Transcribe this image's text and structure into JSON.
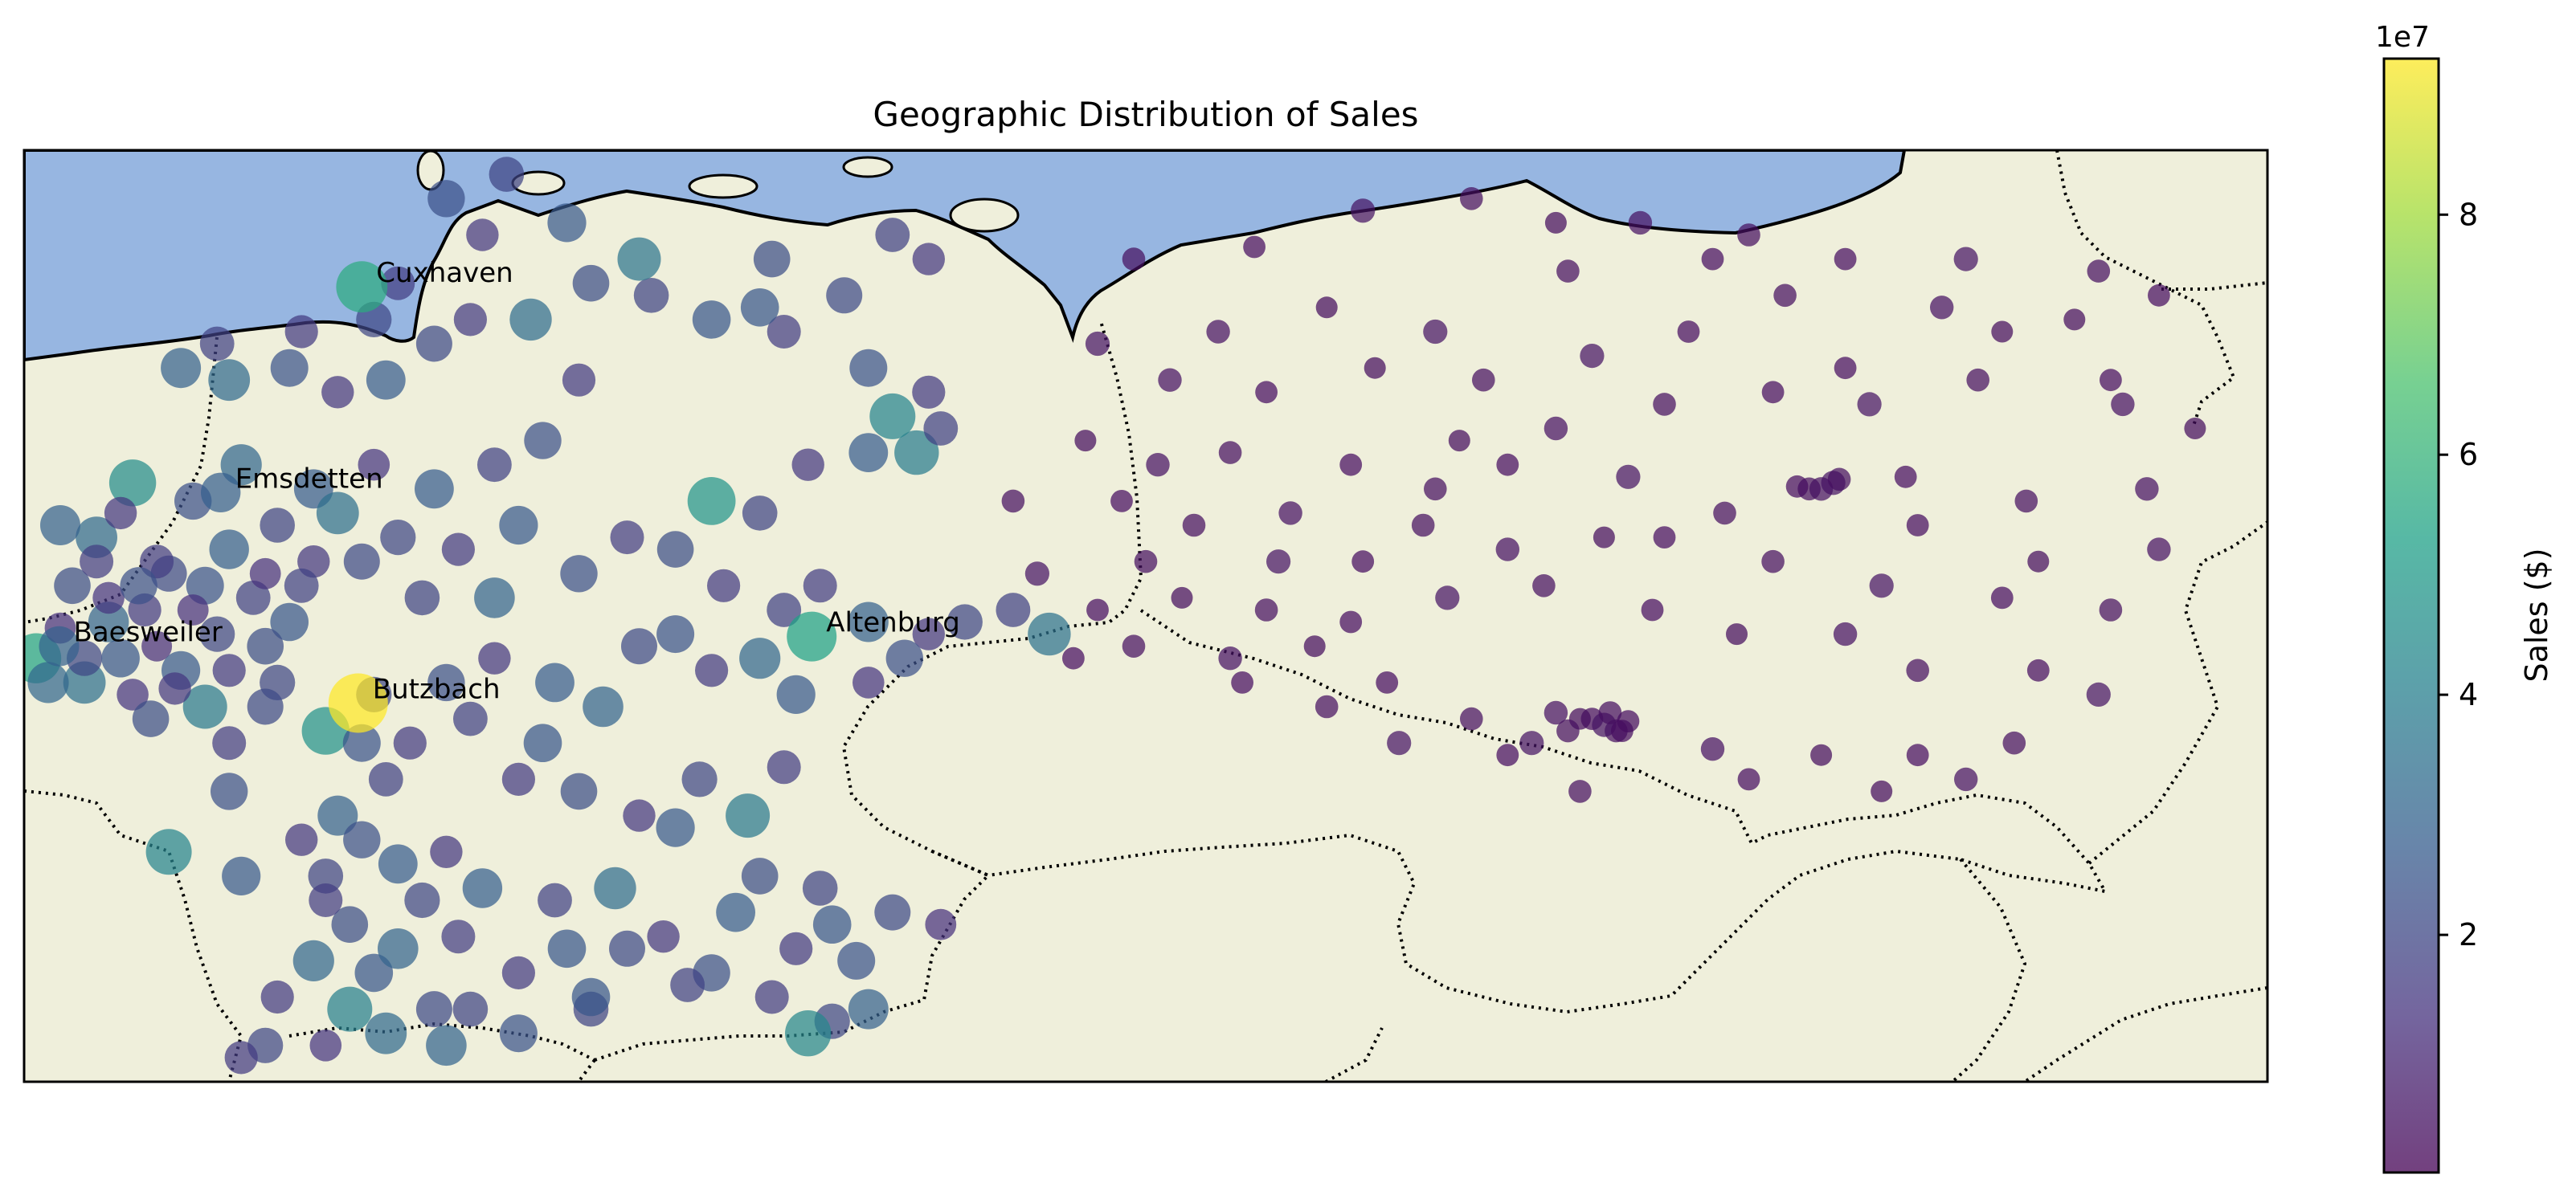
{
  "chart_data": {
    "type": "scatter",
    "title": "Geographic Distribution of Sales",
    "colorbar": {
      "label": "Sales ($)",
      "offset_label": "1e7",
      "ticks": [
        2,
        4,
        6,
        8
      ],
      "tick_labels": [
        "2",
        "4",
        "6",
        "8"
      ],
      "range": [
        0.02,
        9.3
      ],
      "colormap": "viridis"
    },
    "map_extent": {
      "lon": [
        5.9,
        24.5
      ],
      "lat": [
        47.3,
        55.0
      ]
    },
    "colors": {
      "ocean": "#97b6e1",
      "land": "#efefdb",
      "coast": "#000000",
      "border": "#000000"
    },
    "labeled_cities": [
      {
        "name": "Cuxhaven",
        "lon": 8.7,
        "lat": 53.87,
        "sales": 5.7
      },
      {
        "name": "Emsdetten",
        "lon": 7.53,
        "lat": 52.17,
        "sales": 2.8
      },
      {
        "name": "Baesweiler",
        "lon": 6.19,
        "lat": 50.9,
        "sales": 2.9
      },
      {
        "name": "Butzbach",
        "lon": 8.67,
        "lat": 50.43,
        "sales": 9.3
      },
      {
        "name": "Altenburg",
        "lon": 12.43,
        "lat": 50.98,
        "sales": 5.3
      }
    ],
    "points": [
      [
        6.8,
        52.25,
        4.5
      ],
      [
        6.5,
        51.8,
        3.2
      ],
      [
        7.1,
        51.5,
        2.1
      ],
      [
        6.9,
        51.2,
        1.6
      ],
      [
        7.4,
        51.4,
        2.4
      ],
      [
        6.6,
        51.1,
        3.0
      ],
      [
        7.0,
        50.9,
        1.2
      ],
      [
        7.6,
        51.7,
        2.8
      ],
      [
        6.3,
        51.4,
        2.2
      ],
      [
        6.0,
        50.8,
        5.4
      ],
      [
        6.4,
        50.6,
        3.4
      ],
      [
        7.2,
        50.7,
        2.6
      ],
      [
        6.8,
        50.5,
        1.4
      ],
      [
        7.5,
        51.0,
        2.0
      ],
      [
        7.8,
        51.3,
        1.8
      ],
      [
        6.2,
        51.9,
        2.9
      ],
      [
        6.7,
        52.0,
        1.5
      ],
      [
        7.3,
        52.1,
        2.3
      ],
      [
        7.7,
        52.4,
        3.1
      ],
      [
        8.0,
        51.9,
        1.9
      ],
      [
        8.3,
        52.2,
        2.7
      ],
      [
        7.9,
        51.5,
        1.3
      ],
      [
        8.1,
        51.1,
        2.5
      ],
      [
        7.4,
        50.4,
        3.8
      ],
      [
        6.95,
        50.3,
        2.2
      ],
      [
        7.6,
        50.1,
        1.7
      ],
      [
        8.0,
        50.6,
        2.0
      ],
      [
        8.4,
        50.2,
        4.7
      ],
      [
        8.7,
        50.1,
        2.4
      ],
      [
        8.9,
        49.8,
        1.8
      ],
      [
        8.5,
        49.5,
        2.9
      ],
      [
        8.2,
        49.3,
        1.5
      ],
      [
        7.6,
        49.7,
        2.3
      ],
      [
        7.1,
        49.2,
        4.2
      ],
      [
        7.7,
        49.0,
        2.6
      ],
      [
        8.4,
        49.0,
        1.9
      ],
      [
        8.6,
        48.6,
        2.2
      ],
      [
        8.3,
        48.3,
        3.1
      ],
      [
        8.0,
        48.0,
        1.6
      ],
      [
        8.8,
        48.2,
        2.5
      ],
      [
        9.2,
        48.8,
        2.0
      ],
      [
        9.0,
        48.4,
        3.0
      ],
      [
        9.5,
        48.5,
        1.7
      ],
      [
        9.7,
        48.9,
        2.8
      ],
      [
        9.3,
        47.9,
        2.1
      ],
      [
        8.9,
        47.7,
        3.2
      ],
      [
        8.4,
        47.6,
        1.4
      ],
      [
        7.9,
        47.6,
        2.0
      ],
      [
        7.7,
        47.5,
        1.6
      ],
      [
        9.4,
        47.6,
        3.0
      ],
      [
        10.0,
        47.7,
        2.4
      ],
      [
        10.6,
        47.9,
        1.9
      ],
      [
        10.0,
        48.2,
        1.6
      ],
      [
        10.4,
        48.4,
        2.5
      ],
      [
        10.9,
        48.4,
        2.1
      ],
      [
        10.3,
        48.8,
        1.8
      ],
      [
        10.8,
        48.9,
        3.3
      ],
      [
        11.2,
        48.5,
        1.5
      ],
      [
        11.6,
        48.2,
        2.3
      ],
      [
        12.1,
        48.0,
        1.7
      ],
      [
        12.6,
        47.8,
        2.0
      ],
      [
        12.9,
        47.9,
        2.9
      ],
      [
        12.3,
        48.4,
        1.6
      ],
      [
        11.8,
        48.7,
        2.7
      ],
      [
        12.0,
        49.0,
        2.2
      ],
      [
        12.5,
        48.9,
        1.9
      ],
      [
        12.6,
        48.6,
        2.5
      ],
      [
        13.1,
        48.7,
        2.1
      ],
      [
        13.5,
        48.6,
        1.3
      ],
      [
        11.3,
        49.4,
        2.6
      ],
      [
        11.0,
        49.5,
        1.5
      ],
      [
        11.5,
        49.8,
        2.0
      ],
      [
        11.9,
        49.5,
        3.8
      ],
      [
        12.2,
        49.9,
        1.7
      ],
      [
        10.5,
        49.7,
        2.2
      ],
      [
        10.0,
        49.8,
        1.6
      ],
      [
        10.2,
        50.1,
        2.5
      ],
      [
        9.6,
        50.3,
        1.8
      ],
      [
        9.4,
        50.6,
        2.3
      ],
      [
        9.8,
        50.8,
        1.5
      ],
      [
        10.3,
        50.6,
        2.7
      ],
      [
        10.7,
        50.4,
        3.0
      ],
      [
        11.0,
        50.9,
        2.1
      ],
      [
        11.3,
        51.0,
        2.4
      ],
      [
        11.6,
        50.7,
        1.6
      ],
      [
        12.0,
        50.8,
        3.1
      ],
      [
        12.2,
        51.2,
        1.8
      ],
      [
        12.5,
        51.4,
        1.7
      ],
      [
        12.9,
        51.1,
        2.9
      ],
      [
        13.4,
        51.0,
        1.5
      ],
      [
        13.7,
        51.1,
        2.0
      ],
      [
        14.1,
        51.2,
        1.8
      ],
      [
        14.4,
        51.0,
        3.5
      ],
      [
        13.2,
        50.8,
        2.3
      ],
      [
        12.9,
        50.6,
        1.4
      ],
      [
        12.3,
        50.5,
        2.6
      ],
      [
        11.7,
        51.4,
        1.6
      ],
      [
        11.3,
        51.7,
        2.2
      ],
      [
        11.6,
        52.1,
        4.8
      ],
      [
        12.0,
        52.0,
        1.9
      ],
      [
        12.4,
        52.4,
        1.5
      ],
      [
        12.9,
        52.5,
        2.7
      ],
      [
        13.3,
        52.5,
        3.9
      ],
      [
        13.5,
        52.7,
        1.8
      ],
      [
        13.1,
        52.8,
        4.2
      ],
      [
        13.4,
        53.0,
        1.6
      ],
      [
        12.9,
        53.2,
        2.4
      ],
      [
        12.2,
        53.5,
        1.7
      ],
      [
        11.6,
        53.6,
        2.5
      ],
      [
        11.1,
        53.8,
        1.9
      ],
      [
        10.6,
        53.9,
        2.2
      ],
      [
        10.1,
        53.6,
        3.3
      ],
      [
        9.6,
        53.6,
        1.6
      ],
      [
        9.3,
        53.4,
        2.1
      ],
      [
        8.9,
        53.1,
        2.7
      ],
      [
        8.5,
        53.0,
        1.5
      ],
      [
        8.1,
        53.2,
        2.4
      ],
      [
        7.5,
        53.4,
        1.8
      ],
      [
        7.2,
        53.2,
        2.9
      ],
      [
        7.6,
        53.1,
        3.2
      ],
      [
        8.2,
        53.5,
        1.6
      ],
      [
        8.8,
        53.6,
        2.0
      ],
      [
        9.0,
        53.9,
        1.7
      ],
      [
        9.7,
        54.3,
        1.5
      ],
      [
        9.4,
        54.6,
        2.3
      ],
      [
        9.9,
        54.8,
        1.9
      ],
      [
        10.4,
        54.4,
        2.6
      ],
      [
        11.0,
        54.1,
        3.6
      ],
      [
        12.1,
        54.1,
        2.2
      ],
      [
        13.1,
        54.3,
        1.8
      ],
      [
        13.4,
        54.1,
        1.5
      ],
      [
        12.7,
        53.8,
        2.1
      ],
      [
        12.0,
        53.7,
        2.5
      ],
      [
        10.5,
        53.1,
        1.6
      ],
      [
        10.2,
        52.6,
        2.3
      ],
      [
        9.8,
        52.4,
        1.8
      ],
      [
        9.3,
        52.2,
        2.7
      ],
      [
        8.8,
        52.4,
        1.4
      ],
      [
        8.5,
        52.0,
        3.4
      ],
      [
        9.0,
        51.8,
        2.0
      ],
      [
        9.5,
        51.7,
        1.6
      ],
      [
        10.0,
        51.9,
        2.6
      ],
      [
        10.5,
        51.5,
        2.3
      ],
      [
        10.9,
        51.8,
        1.7
      ],
      [
        9.8,
        51.3,
        3.0
      ],
      [
        9.2,
        51.3,
        1.9
      ],
      [
        8.7,
        51.6,
        2.1
      ],
      [
        8.3,
        51.6,
        1.5
      ],
      [
        6.2,
        51.05,
        1.3
      ],
      [
        6.4,
        50.8,
        2.0
      ],
      [
        6.1,
        50.6,
        3.1
      ],
      [
        6.6,
        51.3,
        1.4
      ],
      [
        7.0,
        51.6,
        1.7
      ],
      [
        6.7,
        50.8,
        2.5
      ],
      [
        7.3,
        51.2,
        1.3
      ],
      [
        7.6,
        50.7,
        1.6
      ],
      [
        7.9,
        50.4,
        2.1
      ],
      [
        8.8,
        50.5,
        2.0
      ],
      [
        9.1,
        50.1,
        1.6
      ],
      [
        8.7,
        49.3,
        2.3
      ],
      [
        8.4,
        48.8,
        1.7
      ],
      [
        9.0,
        49.1,
        2.7
      ],
      [
        9.4,
        49.2,
        1.5
      ],
      [
        8.6,
        47.9,
        4.0
      ],
      [
        10.6,
        48.0,
        2.5
      ],
      [
        11.4,
        48.1,
        1.8
      ],
      [
        12.4,
        47.7,
        4.3
      ],
      [
        12.8,
        48.3,
        2.4
      ],
      [
        6.5,
        51.6,
        1.7
      ],
      [
        6.85,
        51.4,
        2.3
      ],
      [
        7.15,
        50.55,
        1.5
      ],
      [
        7.9,
        50.9,
        2.2
      ],
      [
        8.2,
        51.4,
        1.8
      ],
      [
        9.6,
        47.9,
        1.9
      ],
      [
        15.1,
        54.1,
        0.4
      ],
      [
        16.1,
        54.2,
        0.35
      ],
      [
        17.0,
        54.5,
        0.5
      ],
      [
        17.9,
        54.6,
        0.4
      ],
      [
        18.6,
        54.4,
        0.3
      ],
      [
        19.3,
        54.4,
        0.45
      ],
      [
        20.2,
        54.3,
        0.4
      ],
      [
        21.0,
        54.1,
        0.35
      ],
      [
        22.0,
        54.1,
        0.5
      ],
      [
        23.1,
        54.0,
        0.4
      ],
      [
        23.6,
        53.8,
        0.35
      ],
      [
        22.9,
        53.6,
        0.3
      ],
      [
        21.8,
        53.7,
        0.45
      ],
      [
        20.5,
        53.8,
        0.4
      ],
      [
        19.7,
        53.5,
        0.35
      ],
      [
        18.9,
        53.3,
        0.5
      ],
      [
        18.0,
        53.1,
        0.4
      ],
      [
        17.1,
        53.2,
        0.3
      ],
      [
        16.2,
        53.0,
        0.35
      ],
      [
        15.4,
        53.1,
        0.45
      ],
      [
        14.8,
        53.4,
        0.5
      ],
      [
        15.9,
        52.5,
        0.4
      ],
      [
        16.9,
        52.4,
        0.35
      ],
      [
        17.8,
        52.6,
        0.3
      ],
      [
        18.6,
        52.7,
        0.45
      ],
      [
        19.5,
        52.9,
        0.4
      ],
      [
        20.4,
        53.0,
        0.35
      ],
      [
        21.2,
        52.9,
        0.5
      ],
      [
        22.1,
        53.1,
        0.4
      ],
      [
        23.2,
        53.1,
        0.35
      ],
      [
        23.9,
        52.7,
        0.3
      ],
      [
        23.5,
        52.2,
        0.45
      ],
      [
        22.5,
        52.1,
        0.4
      ],
      [
        21.5,
        52.3,
        0.35
      ],
      [
        20.9,
        52.25,
        0.5
      ],
      [
        20.8,
        52.2,
        0.45
      ],
      [
        20.7,
        52.2,
        0.4
      ],
      [
        20.6,
        52.22,
        0.35
      ],
      [
        20.95,
        52.28,
        0.4
      ],
      [
        21.6,
        51.9,
        0.35
      ],
      [
        22.6,
        51.6,
        0.3
      ],
      [
        23.6,
        51.7,
        0.45
      ],
      [
        23.2,
        51.2,
        0.4
      ],
      [
        22.3,
        51.3,
        0.35
      ],
      [
        21.3,
        51.4,
        0.5
      ],
      [
        20.4,
        51.6,
        0.4
      ],
      [
        19.5,
        51.8,
        0.35
      ],
      [
        19.0,
        51.8,
        0.3
      ],
      [
        18.2,
        51.7,
        0.45
      ],
      [
        17.5,
        51.9,
        0.4
      ],
      [
        17.0,
        51.6,
        0.35
      ],
      [
        16.3,
        51.6,
        0.5
      ],
      [
        15.6,
        51.9,
        0.4
      ],
      [
        15.0,
        52.1,
        0.35
      ],
      [
        14.7,
        52.6,
        0.3
      ],
      [
        15.3,
        52.4,
        0.45
      ],
      [
        16.2,
        51.2,
        0.4
      ],
      [
        16.9,
        51.1,
        0.35
      ],
      [
        17.7,
        51.3,
        0.5
      ],
      [
        18.5,
        51.4,
        0.4
      ],
      [
        19.4,
        51.2,
        0.35
      ],
      [
        20.1,
        51.0,
        0.3
      ],
      [
        21.0,
        51.0,
        0.45
      ],
      [
        21.6,
        50.7,
        0.4
      ],
      [
        22.6,
        50.7,
        0.35
      ],
      [
        23.1,
        50.5,
        0.5
      ],
      [
        22.4,
        50.1,
        0.4
      ],
      [
        21.6,
        50.0,
        0.35
      ],
      [
        20.8,
        50.0,
        0.3
      ],
      [
        19.9,
        50.05,
        0.45
      ],
      [
        19.1,
        50.2,
        0.4
      ],
      [
        18.9,
        50.3,
        0.35
      ],
      [
        19.0,
        50.25,
        0.5
      ],
      [
        19.05,
        50.35,
        0.4
      ],
      [
        19.15,
        50.2,
        0.35
      ],
      [
        18.8,
        50.3,
        0.3
      ],
      [
        18.6,
        50.35,
        0.45
      ],
      [
        18.7,
        50.2,
        0.4
      ],
      [
        19.2,
        50.28,
        0.35
      ],
      [
        18.4,
        50.1,
        0.5
      ],
      [
        17.9,
        50.3,
        0.4
      ],
      [
        17.2,
        50.6,
        0.35
      ],
      [
        16.6,
        50.9,
        0.3
      ],
      [
        15.9,
        50.8,
        0.45
      ],
      [
        15.1,
        50.9,
        0.4
      ],
      [
        14.8,
        51.2,
        0.35
      ],
      [
        14.3,
        51.5,
        0.5
      ],
      [
        14.1,
        52.1,
        0.4
      ],
      [
        20.2,
        49.8,
        0.35
      ],
      [
        21.3,
        49.7,
        0.3
      ],
      [
        22.0,
        49.8,
        0.45
      ],
      [
        18.8,
        49.7,
        0.4
      ],
      [
        18.2,
        50.0,
        0.35
      ],
      [
        17.3,
        50.1,
        0.5
      ],
      [
        16.7,
        50.4,
        0.4
      ],
      [
        16.0,
        50.6,
        0.35
      ],
      [
        15.5,
        51.3,
        0.3
      ],
      [
        16.4,
        52.0,
        0.45
      ],
      [
        17.6,
        52.2,
        0.4
      ],
      [
        18.2,
        52.4,
        0.35
      ],
      [
        19.2,
        52.3,
        0.5
      ],
      [
        20.0,
        52.0,
        0.4
      ],
      [
        21.0,
        53.2,
        0.35
      ],
      [
        22.3,
        53.5,
        0.3
      ],
      [
        23.3,
        52.9,
        0.45
      ],
      [
        15.2,
        51.6,
        0.4
      ],
      [
        14.6,
        50.8,
        0.35
      ],
      [
        17.6,
        53.5,
        0.5
      ],
      [
        18.7,
        54.0,
        0.4
      ],
      [
        19.9,
        54.1,
        0.35
      ],
      [
        16.7,
        53.7,
        0.3
      ],
      [
        15.8,
        53.5,
        0.45
      ]
    ]
  }
}
